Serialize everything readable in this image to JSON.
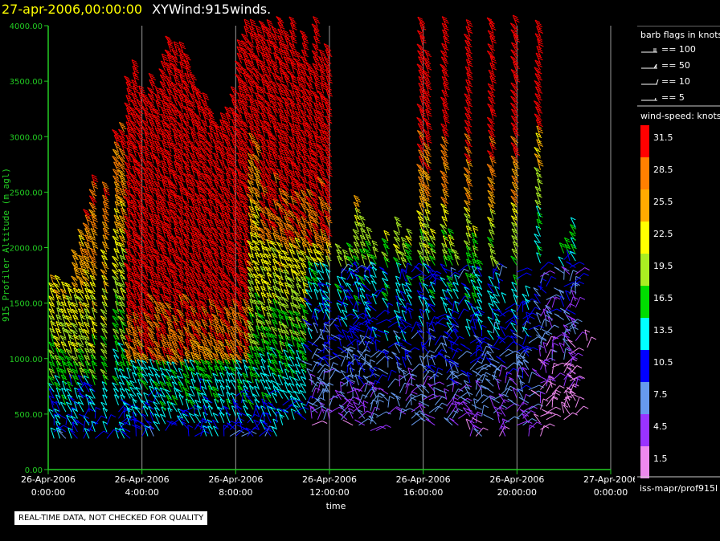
{
  "header": {
    "date_text": "27-apr-2006,00:00:00",
    "product_text": "XYWind:915winds."
  },
  "chart_data": {
    "type": "wind-barb time-height",
    "ylabel": "915 Profiler Altitude (m agl)",
    "xlabel": "time",
    "ylim": [
      0,
      4000
    ],
    "y_ticks": [
      "0.00",
      "500.00",
      "1000.00",
      "1500.00",
      "2000.00",
      "2500.00",
      "3000.00",
      "3500.00",
      "4000.00"
    ],
    "x_ticks": [
      {
        "date": "26-Apr-2006",
        "time": "0:00:00"
      },
      {
        "date": "26-Apr-2006",
        "time": "4:00:00"
      },
      {
        "date": "26-Apr-2006",
        "time": "8:00:00"
      },
      {
        "date": "26-Apr-2006",
        "time": "12:00:00"
      },
      {
        "date": "26-Apr-2006",
        "time": "16:00:00"
      },
      {
        "date": "26-Apr-2006",
        "time": "20:00:00"
      },
      {
        "date": "27-Apr-2006",
        "time": "0:00:00"
      }
    ],
    "xlim_hours": [
      0,
      24
    ],
    "grid": "vertical lines at each 4-hour tick",
    "speed_scale_knots": [
      {
        "label": "31.5",
        "color": "#ff0000"
      },
      {
        "label": "28.5",
        "color": "#ff8000"
      },
      {
        "label": "25.5",
        "color": "#ffaa00"
      },
      {
        "label": "22.5",
        "color": "#ffff00"
      },
      {
        "label": "19.5",
        "color": "#aaee22"
      },
      {
        "label": "16.5",
        "color": "#00dd00"
      },
      {
        "label": "13.5",
        "color": "#00ffff"
      },
      {
        "label": "10.5",
        "color": "#0000ff"
      },
      {
        "label": "7.5",
        "color": "#6699ee"
      },
      {
        "label": "4.5",
        "color": "#9933ff"
      },
      {
        "label": "1.5",
        "color": "#ee88ee"
      }
    ],
    "column_hours": [
      0.25,
      0.5,
      0.75,
      1.0,
      1.25,
      1.5,
      1.75,
      2.0,
      2.5,
      3.0,
      3.25,
      3.5,
      3.75,
      4.0,
      4.25,
      4.5,
      4.75,
      5.0,
      5.25,
      5.5,
      5.75,
      6.0,
      6.25,
      6.5,
      6.75,
      7.0,
      7.25,
      7.5,
      7.75,
      8.0,
      8.25,
      8.5,
      8.75,
      9.0,
      9.25,
      9.5,
      9.75,
      10.0,
      10.25,
      10.5,
      10.75,
      11.0,
      11.25,
      11.5,
      11.75,
      12.0,
      12.5,
      12.75,
      13.0,
      13.25,
      13.5,
      13.75,
      14.0,
      14.5,
      15.0,
      15.25,
      15.5,
      16.0,
      16.25,
      16.5,
      17.0,
      17.25,
      17.5,
      18.0,
      18.25,
      18.5,
      19.0,
      19.25,
      19.5,
      20.0,
      20.25,
      20.5,
      21.0,
      21.25,
      21.5,
      22.0,
      22.25,
      22.5,
      23.0
    ],
    "column_top_m": [
      1700,
      1700,
      1650,
      1600,
      1900,
      2100,
      2300,
      2600,
      2500,
      3000,
      3050,
      3500,
      3600,
      3400,
      3300,
      3500,
      3400,
      3650,
      3850,
      3800,
      3800,
      3700,
      3500,
      3400,
      3300,
      3200,
      3100,
      3150,
      3200,
      3400,
      3800,
      4000,
      4000,
      3900,
      4000,
      4000,
      3950,
      4000,
      3900,
      4000,
      3700,
      3900,
      3600,
      4000,
      3700,
      3800,
      2000,
      1900,
      2000,
      2400,
      2200,
      2100,
      2000,
      2100,
      2200,
      2000,
      2100,
      4000,
      3700,
      2100,
      4000,
      2100,
      1900,
      4000,
      2100,
      1800,
      4000,
      1800,
      1500,
      4000,
      1500,
      1600,
      4000,
      1700,
      1500,
      2000,
      2000,
      2200,
      1200
    ],
    "column_bottom_m": [
      280,
      280,
      280,
      280,
      280,
      280,
      280,
      280,
      280,
      280,
      280,
      280,
      300,
      300,
      300,
      300,
      350,
      350,
      400,
      400,
      400,
      300,
      300,
      300,
      300,
      300,
      300,
      300,
      300,
      300,
      300,
      300,
      300,
      300,
      300,
      300,
      300,
      400,
      450,
      450,
      500,
      450,
      400,
      450,
      450,
      450,
      450,
      450,
      400,
      400,
      400,
      350,
      350,
      500,
      450,
      500,
      400,
      450,
      450,
      400,
      450,
      400,
      400,
      300,
      300,
      300,
      450,
      300,
      300,
      400,
      400,
      300,
      300,
      450,
      500,
      450,
      500,
      500,
      1100
    ]
  },
  "legend": {
    "barb_title": "barb flags in knots",
    "barb_entries": [
      "== 100",
      "== 50",
      "== 10",
      "== 5"
    ],
    "speed_title": "wind-speed: knots",
    "footer": "iss-mapr/prof915l"
  },
  "notice": "REAL-TIME DATA, NOT CHECKED FOR QUALITY"
}
